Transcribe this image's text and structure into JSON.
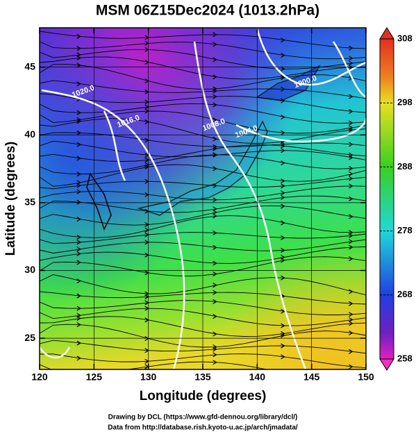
{
  "chart_data": {
    "type": "map",
    "title": "MSM 06Z15Dec2024 (1013.2hPa)",
    "xlabel": "Longitude (degrees)",
    "ylabel": "Latitude  (degrees)",
    "xlim": [
      120,
      150
    ],
    "ylim": [
      22.7,
      47.9
    ],
    "xticks": [
      120,
      125,
      130,
      135,
      140,
      145,
      150
    ],
    "yticks": [
      25,
      30,
      35,
      40,
      45
    ],
    "grid": true,
    "colorbar": {
      "lim": [
        258,
        308
      ],
      "ticks": [
        258,
        268,
        278,
        288,
        298,
        308
      ]
    },
    "contour_labels": [
      "1020.0",
      "1016.0",
      "1008.0",
      "1004.0",
      "1000.0"
    ],
    "credits": [
      "Drawing by DCL (https://www.gfd-dennou.org/library/dcl/)",
      "Data from http://database.rish.kyoto-u.ac.jp/arch/jmadata/"
    ]
  }
}
